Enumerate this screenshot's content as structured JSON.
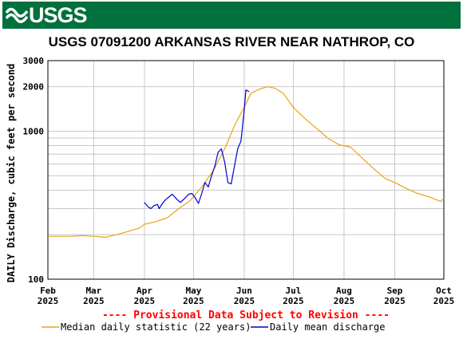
{
  "banner": {
    "logo_text": "USGS",
    "logo_icon": "usgs-wave-icon",
    "color": "#00703c"
  },
  "chart_data": {
    "type": "line",
    "title": "USGS 07091200 ARKANSAS RIVER NEAR NATHROP, CO",
    "ylabel": "DAILY Discharge, cubic feet per second",
    "xlabel": "",
    "yscale": "log",
    "ylim": [
      100,
      3000
    ],
    "xlim": [
      "2025-02-01",
      "2025-10-01"
    ],
    "grid": true,
    "y_tick_labels": [
      "100",
      "1000",
      "2000",
      "3000"
    ],
    "x_ticks": [
      {
        "month": "Feb",
        "year": "2025",
        "date": "2025-02-01"
      },
      {
        "month": "Mar",
        "year": "2025",
        "date": "2025-03-01"
      },
      {
        "month": "Apr",
        "year": "2025",
        "date": "2025-04-01"
      },
      {
        "month": "May",
        "year": "2025",
        "date": "2025-05-01"
      },
      {
        "month": "Jun",
        "year": "2025",
        "date": "2025-06-01"
      },
      {
        "month": "Jul",
        "year": "2025",
        "date": "2025-07-01"
      },
      {
        "month": "Aug",
        "year": "2025",
        "date": "2025-08-01"
      },
      {
        "month": "Sep",
        "year": "2025",
        "date": "2025-09-01"
      },
      {
        "month": "Oct",
        "year": "2025",
        "date": "2025-10-01"
      }
    ],
    "series": [
      {
        "name": "Median daily statistic (22 years)",
        "color": "#e8a317",
        "x": [
          "2025-02-01",
          "2025-02-08",
          "2025-02-15",
          "2025-02-22",
          "2025-03-01",
          "2025-03-08",
          "2025-03-15",
          "2025-03-22",
          "2025-03-29",
          "2025-04-01",
          "2025-04-08",
          "2025-04-15",
          "2025-04-22",
          "2025-04-29",
          "2025-05-06",
          "2025-05-13",
          "2025-05-20",
          "2025-05-27",
          "2025-06-01",
          "2025-06-05",
          "2025-06-10",
          "2025-06-15",
          "2025-06-20",
          "2025-06-25",
          "2025-07-01",
          "2025-07-08",
          "2025-07-15",
          "2025-07-22",
          "2025-07-29",
          "2025-08-05",
          "2025-08-12",
          "2025-08-19",
          "2025-08-26",
          "2025-09-01",
          "2025-09-08",
          "2025-09-15",
          "2025-09-22",
          "2025-09-29",
          "2025-10-01"
        ],
        "values": [
          195,
          195,
          195,
          197,
          195,
          192,
          200,
          210,
          222,
          235,
          245,
          260,
          300,
          340,
          420,
          540,
          760,
          1150,
          1450,
          1800,
          1920,
          2000,
          1950,
          1800,
          1450,
          1220,
          1050,
          900,
          810,
          780,
          660,
          560,
          480,
          450,
          410,
          380,
          360,
          335,
          350
        ]
      },
      {
        "name": "Daily mean discharge",
        "color": "#0000cc",
        "x": [
          "2025-04-01",
          "2025-04-03",
          "2025-04-05",
          "2025-04-07",
          "2025-04-09",
          "2025-04-10",
          "2025-04-12",
          "2025-04-14",
          "2025-04-18",
          "2025-04-21",
          "2025-04-23",
          "2025-04-26",
          "2025-04-28",
          "2025-04-30",
          "2025-05-02",
          "2025-05-04",
          "2025-05-06",
          "2025-05-08",
          "2025-05-10",
          "2025-05-12",
          "2025-05-14",
          "2025-05-16",
          "2025-05-18",
          "2025-05-20",
          "2025-05-22",
          "2025-05-24",
          "2025-05-26",
          "2025-05-28",
          "2025-05-30",
          "2025-06-01",
          "2025-06-02",
          "2025-06-04"
        ],
        "values": [
          330,
          310,
          300,
          315,
          320,
          300,
          325,
          345,
          375,
          345,
          330,
          355,
          375,
          380,
          355,
          325,
          380,
          450,
          420,
          500,
          580,
          720,
          760,
          620,
          450,
          440,
          580,
          760,
          860,
          1400,
          1900,
          1850
        ]
      }
    ]
  },
  "footer": {
    "provisional_note": "---- Provisional Data Subject to Revision ----",
    "legend": [
      {
        "label": "Median daily statistic (22 years)",
        "color": "#e8a317"
      },
      {
        "label": "Daily mean discharge",
        "color": "#0000cc"
      }
    ]
  }
}
